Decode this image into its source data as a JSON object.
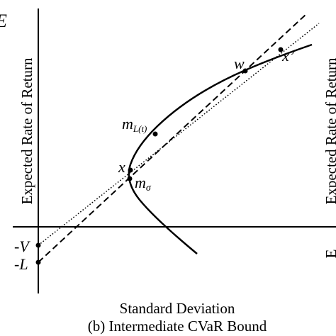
{
  "figure": {
    "caption": "(b) Intermediate CVaR Bound",
    "xlabel": "Standard Deviation",
    "ylabel": "Expected Rate of Return",
    "y_ticks": [
      "-V",
      "-L"
    ],
    "points": {
      "m_L_base": "m",
      "m_L_sub": "L(t)",
      "x": "x",
      "m_sigma_base": "m",
      "m_sigma_sub": "σ",
      "w": "w",
      "x_prime": "x’"
    },
    "clipped_left_letter": "E",
    "right_panel_fragment_1": "Expected Rate of Return",
    "right_panel_fragment_2": "E"
  }
}
